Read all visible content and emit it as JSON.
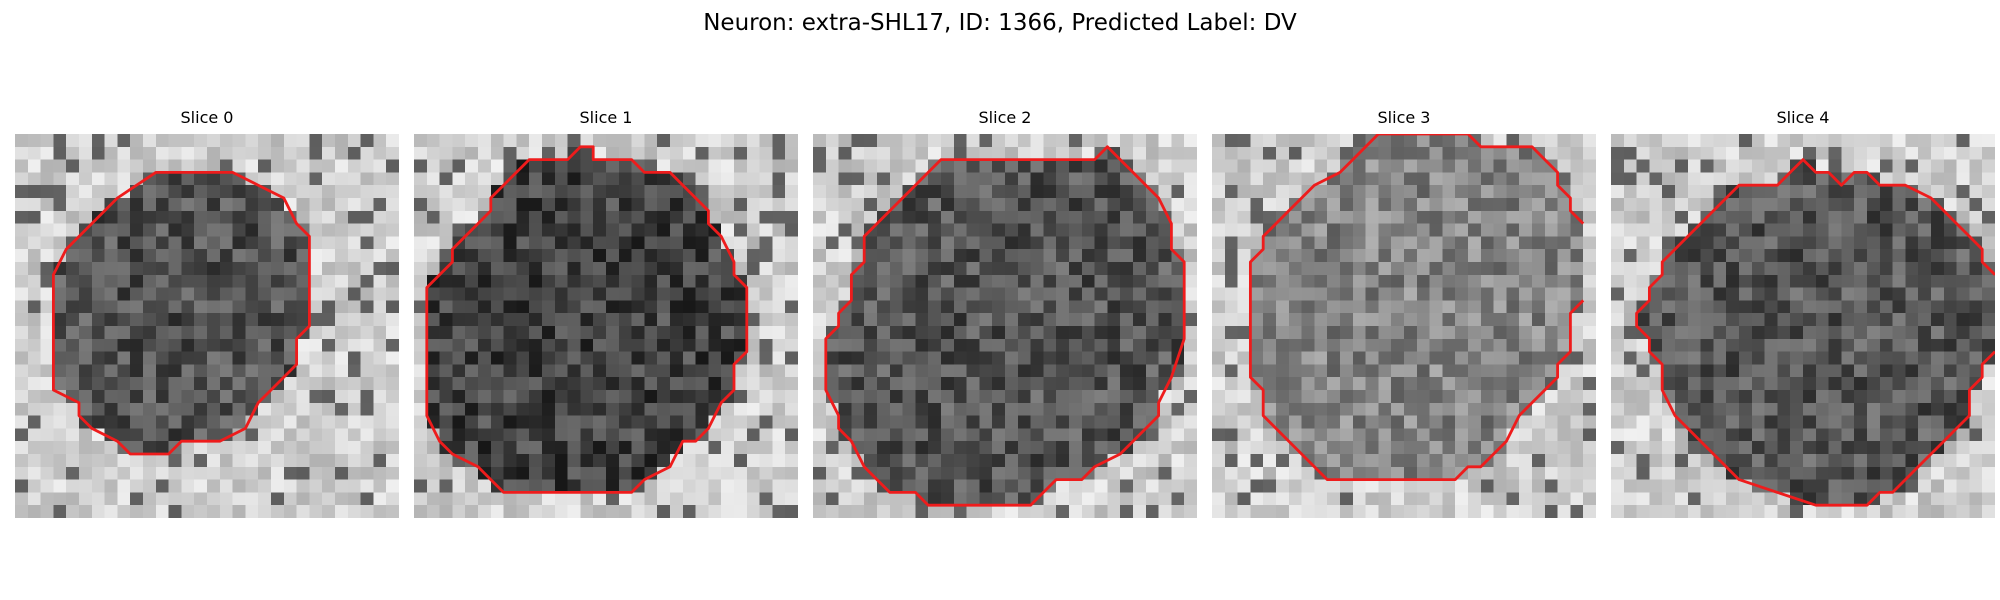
{
  "figure": {
    "suptitle": "Neuron: extra-SHL17, ID: 1366, Predicted Label: DV",
    "colors": {
      "contour": "#ee1c1c",
      "background": "#ffffff"
    }
  },
  "slices": [
    {
      "title": "Slice 0",
      "seed": 11,
      "base": 0.32,
      "rim": 0.18
    },
    {
      "title": "Slice 1",
      "seed": 23,
      "base": 0.26,
      "rim": 0.2
    },
    {
      "title": "Slice 2",
      "seed": 37,
      "base": 0.33,
      "rim": 0.22
    },
    {
      "title": "Slice 3",
      "seed": 53,
      "base": 0.52,
      "rim": 0.16
    },
    {
      "title": "Slice 4",
      "seed": 71,
      "base": 0.34,
      "rim": 0.2
    }
  ]
}
